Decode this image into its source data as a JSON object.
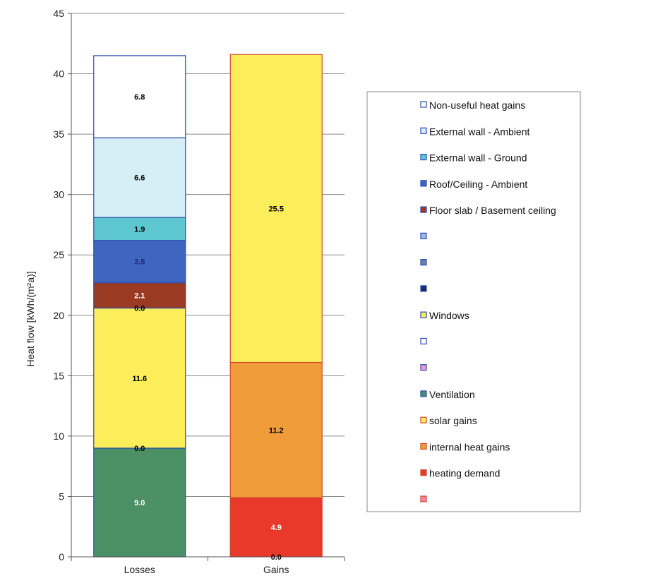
{
  "chart_data": {
    "type": "bar",
    "stacked": true,
    "title": "",
    "xlabel": "",
    "ylabel": "Heat flow [kWh/(m²a)]",
    "ylim": [
      0,
      45
    ],
    "y_ticks": [
      "0",
      "5",
      "10",
      "15",
      "20",
      "25",
      "30",
      "35",
      "40",
      "45"
    ],
    "categories": [
      "Losses",
      "Gains"
    ],
    "grid": "horizontal",
    "legend_position": "right",
    "series": [
      {
        "name": "Non-useful heat gains",
        "fill": "#ffffff",
        "edge": "#2a4fb0",
        "values": [
          6.8,
          0
        ],
        "labels": [
          "6.8",
          ""
        ],
        "label_color": "#000000"
      },
      {
        "name": "External wall - Ambient",
        "fill": "#d6eef5",
        "edge": "#2a4fb0",
        "values": [
          6.6,
          0
        ],
        "labels": [
          "6.6",
          ""
        ],
        "label_color": "#000000"
      },
      {
        "name": "External wall - Ground",
        "fill": "#5fc7cf",
        "edge": "#2a4fb0",
        "values": [
          1.9,
          0
        ],
        "labels": [
          "1.9",
          ""
        ],
        "label_color": "#000000"
      },
      {
        "name": "Roof/Ceiling - Ambient",
        "fill": "#3f65c0",
        "edge": "#2a4fb0",
        "values": [
          3.5,
          0
        ],
        "labels": [
          "3.5",
          ""
        ],
        "label_color": "#1a2a80"
      },
      {
        "name": "Floor slab / Basement ceiling",
        "fill": "#9a3a22",
        "edge": "#2a4fb0",
        "values": [
          2.1,
          0
        ],
        "labels": [
          "2.1",
          ""
        ],
        "label_color": "#ffffff"
      },
      {
        "name": "",
        "fill": "#9fb8e8",
        "edge": "#2a4fb0",
        "values": [
          0,
          0
        ],
        "labels": [
          "0.0",
          ""
        ],
        "label_color": "#000000"
      },
      {
        "name": "",
        "fill": "#6e7fa8",
        "edge": "#2a4fb0",
        "values": [
          0,
          0
        ],
        "labels": [
          "",
          ""
        ],
        "label_color": "#000000"
      },
      {
        "name": "",
        "fill": "#1b2a6b",
        "edge": "#2a4fb0",
        "values": [
          0,
          0
        ],
        "labels": [
          "",
          ""
        ],
        "label_color": "#000000"
      },
      {
        "name": "Windows",
        "fill": "#fbee5a",
        "edge": "#2a4fb0",
        "values": [
          11.6,
          0
        ],
        "labels": [
          "11.6",
          ""
        ],
        "label_color": "#000000"
      },
      {
        "name": "",
        "fill": "#ffffff",
        "edge": "#2a4fb0",
        "values": [
          0,
          0
        ],
        "labels": [
          "0.0",
          ""
        ],
        "label_color": "#000000"
      },
      {
        "name": "",
        "fill": "#e79bd8",
        "edge": "#2a4fb0",
        "values": [
          0,
          0
        ],
        "labels": [
          "",
          ""
        ],
        "label_color": "#000000"
      },
      {
        "name": "Ventilation",
        "fill": "#4c9066",
        "edge": "#2a4fb0",
        "values": [
          9.0,
          0
        ],
        "labels": [
          "9.0",
          ""
        ],
        "label_color": "#ffffff"
      },
      {
        "name": "solar gains",
        "fill": "#fbee5a",
        "edge": "#d04a2a",
        "values": [
          0,
          25.5
        ],
        "labels": [
          "",
          "25.5"
        ],
        "label_color": "#000000"
      },
      {
        "name": "internal heat gains",
        "fill": "#f09c38",
        "edge": "#d04a2a",
        "values": [
          0,
          11.2
        ],
        "labels": [
          "",
          "11.2"
        ],
        "label_color": "#000000"
      },
      {
        "name": "heating demand",
        "fill": "#e8392b",
        "edge": "#d04a2a",
        "values": [
          0,
          4.9
        ],
        "labels": [
          "",
          "4.9"
        ],
        "label_color": "#ffffff"
      },
      {
        "name": "",
        "fill": "#ee8aa0",
        "edge": "#d04a2a",
        "values": [
          0,
          0
        ],
        "labels": [
          "",
          "0.0"
        ],
        "label_color": "#000000"
      }
    ]
  }
}
